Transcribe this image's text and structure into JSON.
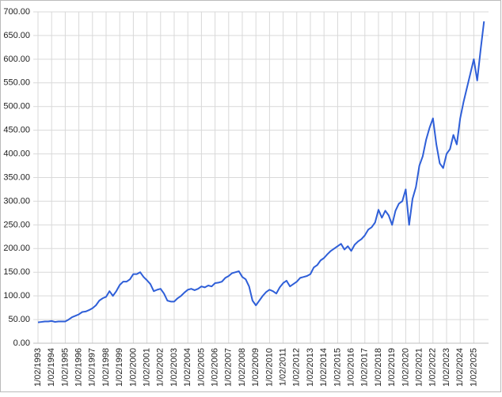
{
  "chart_data": {
    "type": "line",
    "categories": [
      "1/02/1993",
      null,
      null,
      null,
      "1/02/1994",
      null,
      null,
      null,
      "1/02/1995",
      null,
      null,
      null,
      "1/02/1996",
      null,
      null,
      null,
      "1/02/1997",
      null,
      null,
      null,
      "1/02/1998",
      null,
      null,
      null,
      "1/02/1999",
      null,
      null,
      null,
      "1/02/2000",
      null,
      null,
      null,
      "1/02/2001",
      null,
      null,
      null,
      "1/02/2002",
      null,
      null,
      null,
      "1/02/2003",
      null,
      null,
      null,
      "1/02/2004",
      null,
      null,
      null,
      "1/02/2005",
      null,
      null,
      null,
      "1/02/2006",
      null,
      null,
      null,
      "1/02/2007",
      null,
      null,
      null,
      "1/02/2008",
      null,
      null,
      null,
      "1/02/2009",
      null,
      null,
      null,
      "1/02/2010",
      null,
      null,
      null,
      "1/02/2011",
      null,
      null,
      null,
      "1/02/2012",
      null,
      null,
      null,
      "1/02/2013",
      null,
      null,
      null,
      "1/02/2014",
      null,
      null,
      null,
      "1/02/2015",
      null,
      null,
      null,
      "1/02/2016",
      null,
      null,
      null,
      "1/02/2017",
      null,
      null,
      null,
      "1/02/2018",
      null,
      null,
      null,
      "1/02/2019",
      null,
      null,
      null,
      "1/02/2020",
      null,
      null,
      null,
      "1/02/2021",
      null,
      null,
      null,
      "1/02/2022",
      null,
      null,
      null,
      "1/02/2023",
      null,
      null,
      null,
      "1/02/2024",
      null,
      null,
      null,
      "1/02/2025",
      null,
      null,
      null
    ],
    "values": [
      44,
      45,
      46,
      46,
      47,
      45,
      46,
      46,
      46,
      50,
      55,
      58,
      61,
      66,
      67,
      70,
      74,
      80,
      90,
      95,
      98,
      110,
      100,
      110,
      123,
      130,
      130,
      135,
      146,
      146,
      150,
      140,
      133,
      125,
      110,
      113,
      115,
      105,
      90,
      88,
      88,
      95,
      100,
      107,
      113,
      115,
      112,
      115,
      120,
      118,
      122,
      120,
      127,
      128,
      130,
      138,
      142,
      148,
      150,
      152,
      140,
      135,
      120,
      90,
      80,
      90,
      100,
      108,
      113,
      110,
      105,
      118,
      127,
      132,
      120,
      125,
      130,
      138,
      140,
      142,
      146,
      160,
      165,
      175,
      180,
      188,
      195,
      200,
      205,
      210,
      198,
      205,
      195,
      208,
      215,
      220,
      228,
      240,
      245,
      255,
      282,
      265,
      280,
      270,
      250,
      280,
      295,
      300,
      325,
      250,
      305,
      330,
      375,
      395,
      430,
      455,
      475,
      420,
      380,
      370,
      400,
      410,
      440,
      420,
      475,
      510,
      540,
      570,
      600,
      555,
      620,
      680
    ],
    "color": "#2f5fd8",
    "ylim": [
      0,
      700
    ],
    "yticks": [
      {
        "value": 0,
        "label": "0.00"
      },
      {
        "value": 50,
        "label": "50.00"
      },
      {
        "value": 100,
        "label": "100.00"
      },
      {
        "value": 150,
        "label": "150.00"
      },
      {
        "value": 200,
        "label": "200.00"
      },
      {
        "value": 250,
        "label": "250.00"
      },
      {
        "value": 300,
        "label": "300.00"
      },
      {
        "value": 350,
        "label": "350.00"
      },
      {
        "value": 400,
        "label": "400.00"
      },
      {
        "value": 450,
        "label": "450.00"
      },
      {
        "value": 500,
        "label": "500.00"
      },
      {
        "value": 550,
        "label": "550.00"
      },
      {
        "value": 600,
        "label": "600.00"
      },
      {
        "value": 650,
        "label": "650.00"
      },
      {
        "value": 700,
        "label": "700.00"
      }
    ],
    "grid": true
  }
}
